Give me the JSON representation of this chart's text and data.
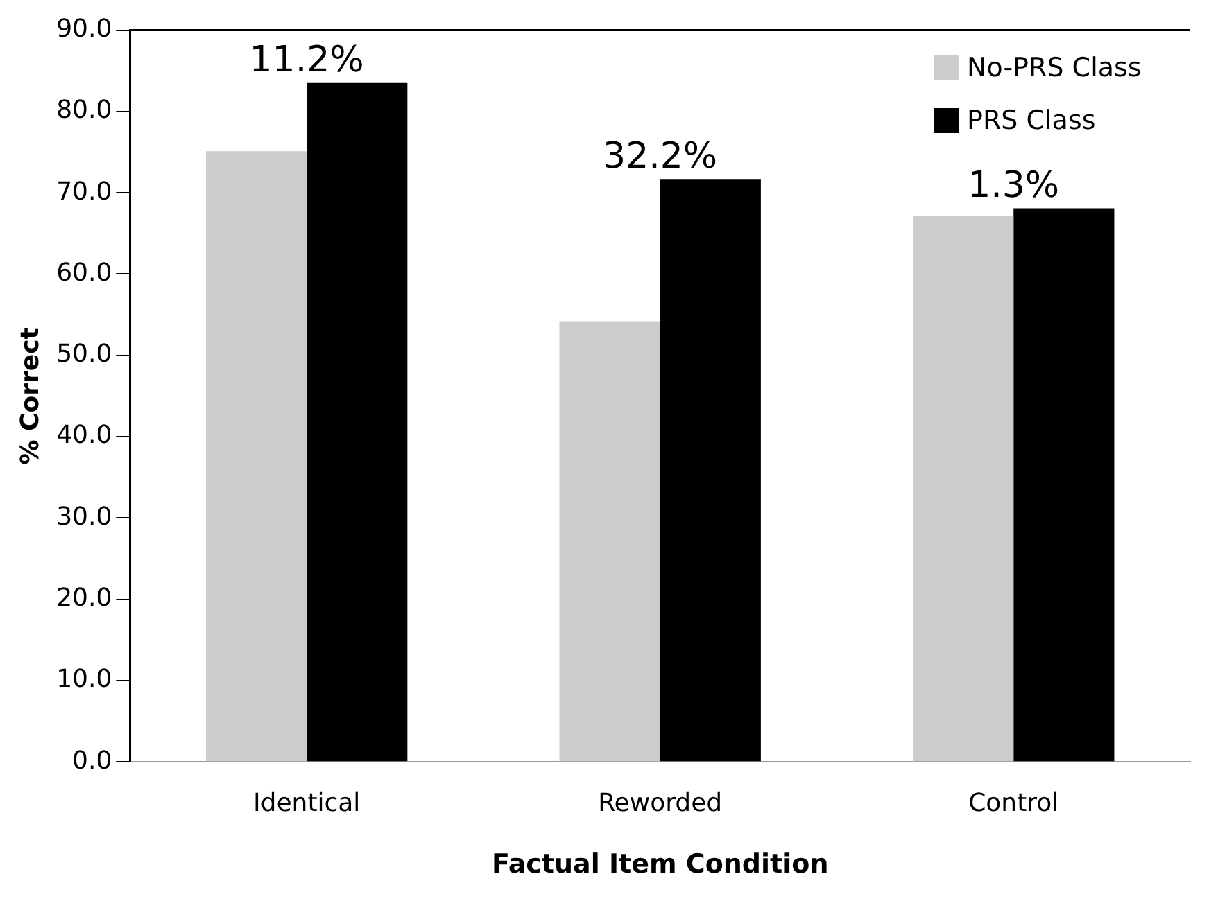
{
  "chart_data": {
    "type": "bar",
    "xlabel": "Factual Item Condition",
    "ylabel": "% Correct",
    "categories": [
      "Identical",
      "Reworded",
      "Control"
    ],
    "series": [
      {
        "name": "No-PRS Class",
        "color": "#cccccc",
        "values": [
          75.1,
          54.2,
          67.2
        ]
      },
      {
        "name": "PRS Class",
        "color": "#000000",
        "values": [
          83.5,
          71.7,
          68.1
        ]
      }
    ],
    "ylim": [
      0,
      90
    ],
    "yticks": [
      {
        "value": 0,
        "label": "0.0"
      },
      {
        "value": 10,
        "label": "10.0"
      },
      {
        "value": 20,
        "label": "20.0"
      },
      {
        "value": 30,
        "label": "30.0"
      },
      {
        "value": 40,
        "label": "40.0"
      },
      {
        "value": 50,
        "label": "50.0"
      },
      {
        "value": 60,
        "label": "60.0"
      },
      {
        "value": 70,
        "label": "70.0"
      },
      {
        "value": 80,
        "label": "80.0"
      },
      {
        "value": 90,
        "label": "90.0"
      }
    ],
    "annotations": [
      {
        "text": "11.2%",
        "x": "Identical",
        "y": 83.5
      },
      {
        "text": "32.2%",
        "x": "Reworded",
        "y": 71.7
      },
      {
        "text": "1.3%",
        "x": "Control",
        "y": 68.1
      }
    ],
    "grid": false,
    "legend": "top right"
  }
}
